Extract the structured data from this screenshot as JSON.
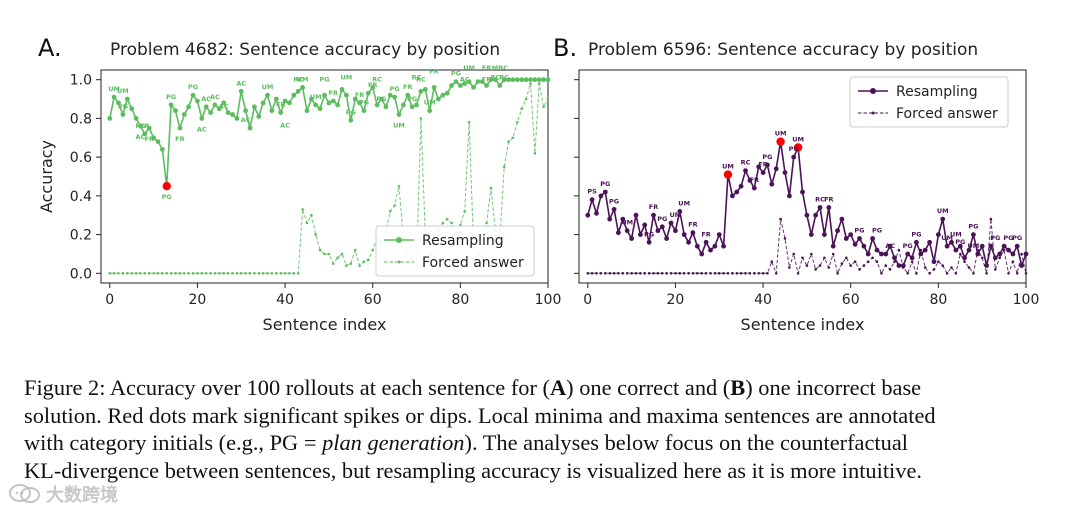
{
  "panels": [
    {
      "letter": "A.",
      "title": "Problem 4682: Sentence accuracy by position",
      "ylabel": "Accuracy",
      "xlabel": "Sentence index"
    },
    {
      "letter": "B.",
      "title": "Problem 6596: Sentence accuracy by position",
      "ylabel": "",
      "xlabel": "Sentence index"
    }
  ],
  "chart_data": [
    {
      "type": "line",
      "title": "Problem 4682: Sentence accuracy by position",
      "xlabel": "Sentence index",
      "ylabel": "Accuracy",
      "xlim": [
        -2,
        100
      ],
      "ylim": [
        -0.05,
        1.05
      ],
      "xticks": [
        0,
        20,
        40,
        60,
        80,
        100
      ],
      "yticks": [
        0.0,
        0.2,
        0.4,
        0.6,
        0.8,
        1.0
      ],
      "legend_position": "lower-right",
      "series": [
        {
          "name": "Resampling",
          "color": "#5cbd5f",
          "style": "solid",
          "values": [
            0.8,
            0.91,
            0.88,
            0.82,
            0.9,
            0.85,
            0.8,
            0.76,
            0.72,
            0.75,
            0.7,
            0.68,
            0.64,
            0.45,
            0.87,
            0.84,
            0.75,
            0.82,
            0.86,
            0.92,
            0.89,
            0.8,
            0.86,
            0.83,
            0.87,
            0.85,
            0.88,
            0.83,
            0.82,
            0.8,
            0.94,
            0.84,
            0.75,
            0.86,
            0.81,
            0.88,
            0.92,
            0.84,
            0.9,
            0.83,
            0.89,
            0.88,
            0.92,
            0.94,
            0.96,
            0.84,
            0.9,
            0.87,
            0.85,
            0.92,
            0.88,
            0.89,
            0.87,
            0.95,
            0.92,
            0.79,
            0.9,
            0.88,
            0.84,
            0.93,
            0.96,
            0.87,
            0.9,
            0.86,
            0.92,
            0.91,
            0.82,
            0.87,
            0.92,
            0.86,
            0.87,
            0.94,
            0.95,
            0.84,
            0.96,
            0.9,
            0.92,
            0.93,
            0.97,
            0.99,
            0.97,
            0.98,
            0.99,
            0.96,
            0.99,
            0.99,
            0.97,
            1.0,
            1.0,
            0.97,
            1.0,
            1.0,
            1.0,
            1.0,
            1.0,
            1.0,
            1.0,
            1.0,
            1.0,
            1.0,
            1.0
          ]
        },
        {
          "name": "Forced answer",
          "color": "#5cbd5f",
          "style": "dashed",
          "values": [
            0,
            0,
            0,
            0,
            0,
            0,
            0,
            0,
            0,
            0,
            0,
            0,
            0,
            0,
            0,
            0,
            0,
            0,
            0,
            0,
            0,
            0,
            0,
            0,
            0,
            0,
            0,
            0,
            0,
            0,
            0,
            0,
            0,
            0,
            0,
            0,
            0,
            0,
            0,
            0,
            0,
            0,
            0,
            0,
            0.33,
            0.26,
            0.3,
            0.2,
            0.12,
            0.1,
            0.1,
            0.05,
            0.08,
            0.1,
            0.04,
            0.05,
            0.12,
            0.04,
            0.06,
            0.07,
            0.12,
            0.18,
            0.15,
            0.22,
            0.32,
            0.35,
            0.45,
            0.18,
            0.1,
            0.08,
            0.04,
            0.8,
            0.2,
            0.1,
            0.08,
            0.22,
            0.26,
            0.28,
            0.26,
            0.2,
            0.25,
            0.32,
            0.78,
            0.15,
            0.1,
            0.08,
            0.26,
            0.44,
            0.22,
            0.18,
            0.55,
            0.68,
            0.7,
            0.78,
            0.85,
            0.9,
            0.98,
            0.62,
            0.98,
            0.86,
            0.9
          ]
        }
      ],
      "highlights": [
        {
          "x": 13,
          "y": 0.45,
          "color": "#ff0000"
        }
      ],
      "annotations": [
        {
          "x": 1,
          "y": 0.91,
          "label": "UM"
        },
        {
          "x": 3,
          "y": 0.9,
          "label": "UM"
        },
        {
          "x": 3,
          "y": 0.82,
          "label": "PG"
        },
        {
          "x": 7,
          "y": 0.76,
          "label": "AC"
        },
        {
          "x": 8,
          "y": 0.72,
          "label": "FR"
        },
        {
          "x": 9,
          "y": 0.75,
          "label": "FR"
        },
        {
          "x": 7,
          "y": 0.72,
          "label": "PG"
        },
        {
          "x": 13,
          "y": 0.45,
          "label": "PG"
        },
        {
          "x": 14,
          "y": 0.87,
          "label": "PG"
        },
        {
          "x": 16,
          "y": 0.75,
          "label": "FR"
        },
        {
          "x": 19,
          "y": 0.92,
          "label": "PG"
        },
        {
          "x": 21,
          "y": 0.8,
          "label": "AC"
        },
        {
          "x": 22,
          "y": 0.86,
          "label": "AC"
        },
        {
          "x": 24,
          "y": 0.87,
          "label": "AC"
        },
        {
          "x": 26,
          "y": 0.82,
          "label": "AC"
        },
        {
          "x": 30,
          "y": 0.94,
          "label": "AC"
        },
        {
          "x": 31,
          "y": 0.75,
          "label": "AC"
        },
        {
          "x": 36,
          "y": 0.92,
          "label": "UM"
        },
        {
          "x": 39,
          "y": 0.83,
          "label": "FR"
        },
        {
          "x": 40,
          "y": 0.82,
          "label": "AC"
        },
        {
          "x": 43,
          "y": 0.96,
          "label": "RC"
        },
        {
          "x": 44,
          "y": 0.96,
          "label": "UM"
        },
        {
          "x": 47,
          "y": 0.87,
          "label": "UM"
        },
        {
          "x": 49,
          "y": 0.96,
          "label": "PG"
        },
        {
          "x": 51,
          "y": 0.89,
          "label": "FR"
        },
        {
          "x": 54,
          "y": 0.97,
          "label": "UM"
        },
        {
          "x": 55,
          "y": 0.79,
          "label": "PG"
        },
        {
          "x": 57,
          "y": 0.88,
          "label": "FR"
        },
        {
          "x": 58,
          "y": 0.84,
          "label": "PG"
        },
        {
          "x": 60,
          "y": 0.93,
          "label": "FR"
        },
        {
          "x": 61,
          "y": 0.96,
          "label": "RC"
        },
        {
          "x": 62,
          "y": 0.86,
          "label": "PG"
        },
        {
          "x": 65,
          "y": 0.91,
          "label": "PG"
        },
        {
          "x": 66,
          "y": 0.82,
          "label": "UM"
        },
        {
          "x": 68,
          "y": 0.92,
          "label": "FR"
        },
        {
          "x": 69,
          "y": 0.86,
          "label": "PG"
        },
        {
          "x": 70,
          "y": 0.97,
          "label": "RC"
        },
        {
          "x": 71,
          "y": 0.96,
          "label": "RC"
        },
        {
          "x": 73,
          "y": 0.84,
          "label": "UM"
        },
        {
          "x": 74,
          "y": 1.0,
          "label": "FR"
        },
        {
          "x": 79,
          "y": 0.99,
          "label": "PG"
        },
        {
          "x": 81,
          "y": 0.96,
          "label": "AC"
        },
        {
          "x": 82,
          "y": 1.02,
          "label": "UM"
        },
        {
          "x": 86,
          "y": 0.96,
          "label": "FR"
        },
        {
          "x": 86,
          "y": 1.02,
          "label": "FR"
        },
        {
          "x": 88,
          "y": 0.97,
          "label": "RC"
        },
        {
          "x": 89,
          "y": 1.02,
          "label": "MBC"
        },
        {
          "x": 90,
          "y": 0.97,
          "label": "RC"
        }
      ]
    },
    {
      "type": "line",
      "title": "Problem 6596: Sentence accuracy by position",
      "xlabel": "Sentence index",
      "ylabel": "",
      "xlim": [
        -2,
        100
      ],
      "ylim": [
        -0.05,
        1.05
      ],
      "xticks": [
        0,
        20,
        40,
        60,
        80,
        100
      ],
      "yticks": [
        0.0,
        0.2,
        0.4,
        0.6,
        0.8,
        1.0
      ],
      "legend_position": "upper-right",
      "series": [
        {
          "name": "Resampling",
          "color": "#4a1356",
          "style": "solid",
          "values": [
            0.3,
            0.38,
            0.31,
            0.4,
            0.42,
            0.28,
            0.33,
            0.21,
            0.28,
            0.22,
            0.18,
            0.3,
            0.2,
            0.25,
            0.16,
            0.3,
            0.22,
            0.24,
            0.18,
            0.26,
            0.22,
            0.32,
            0.2,
            0.16,
            0.21,
            0.14,
            0.1,
            0.16,
            0.12,
            0.14,
            0.2,
            0.14,
            0.51,
            0.4,
            0.42,
            0.45,
            0.53,
            0.48,
            0.44,
            0.55,
            0.52,
            0.56,
            0.46,
            0.54,
            0.68,
            0.52,
            0.4,
            0.6,
            0.65,
            0.42,
            0.3,
            0.2,
            0.3,
            0.34,
            0.2,
            0.34,
            0.14,
            0.22,
            0.28,
            0.18,
            0.2,
            0.15,
            0.18,
            0.14,
            0.1,
            0.18,
            0.12,
            0.1,
            0.1,
            0.14,
            0.08,
            0.04,
            0.04,
            0.1,
            0.08,
            0.16,
            0.1,
            0.12,
            0.16,
            0.06,
            0.2,
            0.28,
            0.14,
            0.16,
            0.12,
            0.14,
            0.08,
            0.12,
            0.2,
            0.1,
            0.14,
            0.04,
            0.14,
            0.08,
            0.1,
            0.14,
            0.12,
            0.1,
            0.14,
            0.04,
            0.1
          ]
        },
        {
          "name": "Forced answer",
          "color": "#4a1356",
          "style": "dashed",
          "values": [
            0,
            0,
            0,
            0,
            0,
            0,
            0,
            0,
            0,
            0,
            0,
            0,
            0,
            0,
            0,
            0,
            0,
            0,
            0,
            0,
            0,
            0,
            0,
            0,
            0,
            0,
            0,
            0,
            0,
            0,
            0,
            0,
            0,
            0,
            0,
            0,
            0,
            0,
            0,
            0,
            0,
            0,
            0.06,
            0,
            0.28,
            0.18,
            0.03,
            0.1,
            0,
            0.08,
            0.04,
            0.1,
            0.02,
            0.04,
            0.08,
            0.03,
            0.1,
            0,
            0.05,
            0.08,
            0.04,
            0.06,
            0.02,
            0.04,
            0.06,
            0.08,
            0.06,
            0,
            0.04,
            0.02,
            0.06,
            0.12,
            0.03,
            0,
            0.06,
            0,
            0.12,
            0.03,
            0,
            0.02,
            0.06,
            0.04,
            0,
            0.03,
            0,
            0.1,
            0.06,
            0.03,
            0,
            0.12,
            0.08,
            0,
            0.28,
            0.02,
            0.08,
            0.12,
            0,
            0.06,
            0,
            0.1,
            0
          ]
        }
      ],
      "highlights": [
        {
          "x": 32,
          "y": 0.51,
          "color": "#ff0000"
        },
        {
          "x": 44,
          "y": 0.68,
          "color": "#ff0000"
        },
        {
          "x": 48,
          "y": 0.65,
          "color": "#ff0000"
        }
      ],
      "annotations": [
        {
          "x": 1,
          "y": 0.38,
          "label": "PS"
        },
        {
          "x": 4,
          "y": 0.42,
          "label": "PG"
        },
        {
          "x": 6,
          "y": 0.33,
          "label": "PG"
        },
        {
          "x": 9,
          "y": 0.22,
          "label": "UM"
        },
        {
          "x": 14,
          "y": 0.16,
          "label": "PG"
        },
        {
          "x": 15,
          "y": 0.3,
          "label": "FR"
        },
        {
          "x": 17,
          "y": 0.24,
          "label": "PG"
        },
        {
          "x": 20,
          "y": 0.26,
          "label": "UM"
        },
        {
          "x": 22,
          "y": 0.32,
          "label": "UM"
        },
        {
          "x": 24,
          "y": 0.21,
          "label": "FR"
        },
        {
          "x": 27,
          "y": 0.16,
          "label": "FR"
        },
        {
          "x": 32,
          "y": 0.51,
          "label": "UM"
        },
        {
          "x": 36,
          "y": 0.53,
          "label": "RC"
        },
        {
          "x": 38,
          "y": 0.44,
          "label": "FR"
        },
        {
          "x": 40,
          "y": 0.52,
          "label": "FR"
        },
        {
          "x": 41,
          "y": 0.56,
          "label": "PG"
        },
        {
          "x": 44,
          "y": 0.68,
          "label": "UM"
        },
        {
          "x": 48,
          "y": 0.65,
          "label": "UM"
        },
        {
          "x": 47,
          "y": 0.6,
          "label": "PG"
        },
        {
          "x": 53,
          "y": 0.34,
          "label": "RC"
        },
        {
          "x": 55,
          "y": 0.34,
          "label": "FR"
        },
        {
          "x": 62,
          "y": 0.18,
          "label": "PG"
        },
        {
          "x": 66,
          "y": 0.18,
          "label": "PG"
        },
        {
          "x": 69,
          "y": 0.1,
          "label": "AC"
        },
        {
          "x": 73,
          "y": 0.1,
          "label": "PG"
        },
        {
          "x": 75,
          "y": 0.16,
          "label": "PG"
        },
        {
          "x": 81,
          "y": 0.28,
          "label": "UM"
        },
        {
          "x": 82,
          "y": 0.14,
          "label": "UM"
        },
        {
          "x": 84,
          "y": 0.16,
          "label": "UM"
        },
        {
          "x": 85,
          "y": 0.12,
          "label": "PG"
        },
        {
          "x": 88,
          "y": 0.2,
          "label": "PG"
        },
        {
          "x": 88,
          "y": 0.1,
          "label": "UM"
        },
        {
          "x": 93,
          "y": 0.14,
          "label": "PG"
        },
        {
          "x": 96,
          "y": 0.14,
          "label": "PG"
        },
        {
          "x": 98,
          "y": 0.14,
          "label": "PG"
        }
      ]
    }
  ],
  "caption": {
    "lines": [
      [
        {
          "t": "Figure 2: Accuracy over 100 rollouts at each sentence for (",
          "s": "n"
        },
        {
          "t": "A",
          "s": "b"
        },
        {
          "t": ") one correct and (",
          "s": "n"
        },
        {
          "t": "B",
          "s": "b"
        },
        {
          "t": ") one incorrect base",
          "s": "n"
        }
      ],
      [
        {
          "t": "solution. Red dots mark significant spikes or dips. Local minima and maxima sentences are annotated",
          "s": "n"
        }
      ],
      [
        {
          "t": "with category initials (e.g., PG = ",
          "s": "n"
        },
        {
          "t": "plan generation",
          "s": "i"
        },
        {
          "t": "). The analyses below focus on the counterfactual",
          "s": "n"
        }
      ],
      [
        {
          "t": "KL-divergence between sentences, but resampling accuracy is visualized here as it is more intuitive.",
          "s": "n"
        }
      ]
    ]
  },
  "watermark": {
    "text": "大数跨境",
    "icon": "chat-bubble-icon"
  }
}
